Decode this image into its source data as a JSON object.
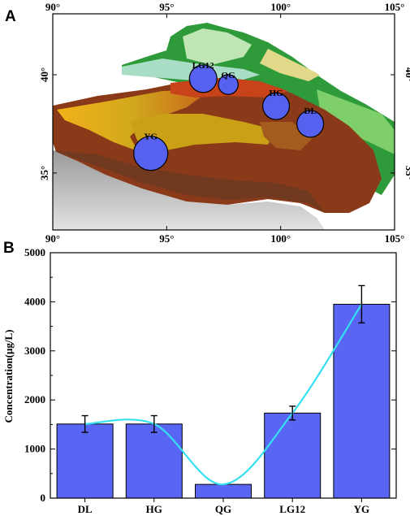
{
  "panels": {
    "a": "A",
    "b": "B"
  },
  "map": {
    "lon_ticks": [
      {
        "value": 90,
        "label": "90°"
      },
      {
        "value": 95,
        "label": "95°"
      },
      {
        "value": 100,
        "label": "100°"
      },
      {
        "value": 105,
        "label": "105°"
      }
    ],
    "lat_ticks": [
      {
        "value": 40,
        "label": "40°"
      },
      {
        "value": 35,
        "label": "35°"
      }
    ],
    "lon_range": [
      90,
      105
    ],
    "lat_range": [
      32.1,
      43.1
    ],
    "sites": [
      {
        "name": "LG12",
        "lon": 96.6,
        "lat": 39.8,
        "size": 1733
      },
      {
        "name": "QG",
        "lon": 97.7,
        "lat": 39.5,
        "size": 280
      },
      {
        "name": "HG",
        "lon": 99.8,
        "lat": 38.4,
        "size": 1510
      },
      {
        "name": "DL",
        "lon": 101.3,
        "lat": 37.5,
        "size": 1510
      },
      {
        "name": "YG",
        "lon": 94.3,
        "lat": 36.0,
        "size": 3950
      }
    ],
    "colors": {
      "marker": "#5661f0",
      "high_elevation": "#7a2f12",
      "plateau": "#c9a016",
      "lowland": "#2f9a3a",
      "desert": "#a9ddc5"
    }
  },
  "chart_data": {
    "type": "bar",
    "categories": [
      "DL",
      "HG",
      "QG",
      "LG12",
      "YG"
    ],
    "values": [
      1510,
      1510,
      280,
      1733,
      3950
    ],
    "errors": [
      170,
      170,
      0,
      140,
      380
    ],
    "ylabel": "Concentration(μg/L)",
    "ylim": [
      0,
      5000
    ],
    "yticks": [
      0,
      1000,
      2000,
      3000,
      4000,
      5000
    ],
    "bar_color": "#5965f3",
    "curve_color": "#35e0f0",
    "grid": false
  }
}
